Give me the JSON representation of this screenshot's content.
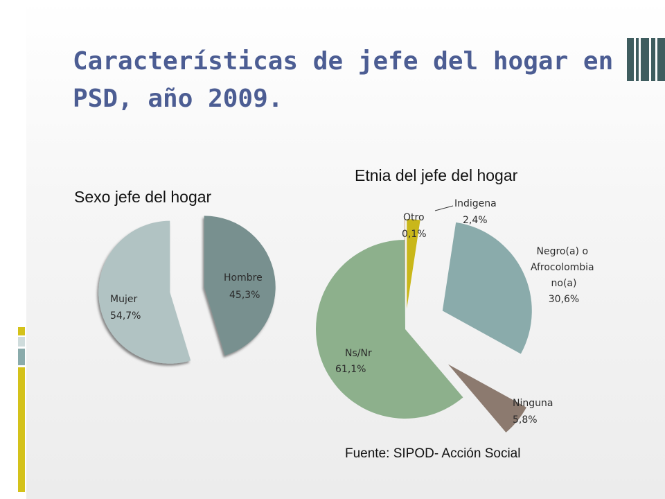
{
  "slide": {
    "title": "Características de jefe del hogar en PSD, año 2009.",
    "source": "Fuente: SIPOD- Acción Social"
  },
  "colors": {
    "title": "#4c5d93",
    "accent_yellow": "#d4c21a",
    "accent_teal": "#8aabab"
  },
  "chart_data": [
    {
      "type": "pie",
      "title": "Sexo jefe del hogar",
      "slices": [
        {
          "label": "Hombre",
          "value_label": "45,3%",
          "value": 45.3,
          "color": "#78908f"
        },
        {
          "label": "Mujer",
          "value_label": "54,7%",
          "value": 54.7,
          "color": "#b1c3c3"
        }
      ]
    },
    {
      "type": "pie",
      "title": "Etnia del jefe del hogar",
      "slices": [
        {
          "label": "Indigena",
          "value_label": "2,4%",
          "value": 2.4,
          "color": "#c9b71a"
        },
        {
          "label": "Negro(a) o Afrocolombia no(a)",
          "value_label": "30,6%",
          "value": 30.6,
          "color": "#8aabab"
        },
        {
          "label": "Ninguna",
          "value_label": "5,8%",
          "value": 5.8,
          "color": "#8c7a6f"
        },
        {
          "label": "Ns/Nr",
          "value_label": "61,1%",
          "value": 61.1,
          "color": "#8db08c"
        },
        {
          "label": "Otro",
          "value_label": "0,1%",
          "value": 0.1,
          "color": "#c08f50"
        }
      ]
    }
  ]
}
